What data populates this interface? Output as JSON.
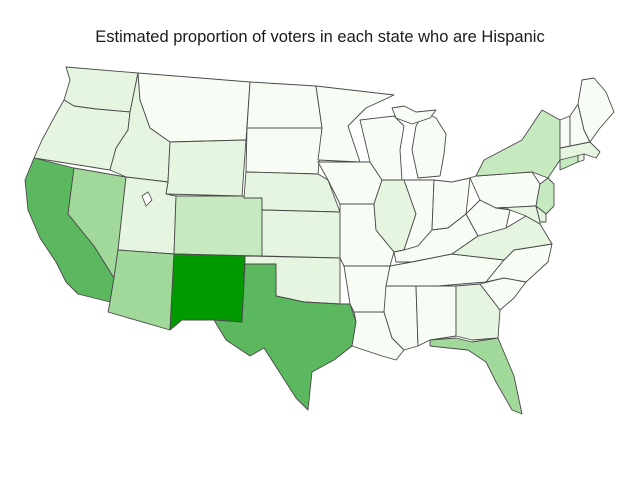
{
  "title": "Estimated proportion of voters in each state who are Hispanic",
  "palette": {
    "0": "#f7fcf5",
    "1": "#e5f5e0",
    "2": "#c7e9c0",
    "3": "#a1d99b",
    "4": "#5bb85e",
    "5": "#009a00"
  },
  "states": [
    {
      "name": "washington",
      "level": 1
    },
    {
      "name": "oregon",
      "level": 1
    },
    {
      "name": "california",
      "level": 4
    },
    {
      "name": "nevada",
      "level": 3
    },
    {
      "name": "idaho",
      "level": 1
    },
    {
      "name": "montana",
      "level": 0
    },
    {
      "name": "wyoming",
      "level": 1
    },
    {
      "name": "utah",
      "level": 1
    },
    {
      "name": "arizona",
      "level": 3
    },
    {
      "name": "colorado",
      "level": 2
    },
    {
      "name": "new-mexico",
      "level": 5
    },
    {
      "name": "north-dakota",
      "level": 0
    },
    {
      "name": "south-dakota",
      "level": 0
    },
    {
      "name": "nebraska",
      "level": 1
    },
    {
      "name": "kansas",
      "level": 1
    },
    {
      "name": "oklahoma",
      "level": 1
    },
    {
      "name": "texas",
      "level": 4
    },
    {
      "name": "minnesota",
      "level": 0
    },
    {
      "name": "iowa",
      "level": 0
    },
    {
      "name": "missouri",
      "level": 0
    },
    {
      "name": "arkansas",
      "level": 0
    },
    {
      "name": "louisiana",
      "level": 0
    },
    {
      "name": "wisconsin",
      "level": 0
    },
    {
      "name": "illinois",
      "level": 1
    },
    {
      "name": "michigan",
      "level": 0
    },
    {
      "name": "indiana",
      "level": 0
    },
    {
      "name": "ohio",
      "level": 0
    },
    {
      "name": "kentucky",
      "level": 0
    },
    {
      "name": "tennessee",
      "level": 0
    },
    {
      "name": "mississippi",
      "level": 0
    },
    {
      "name": "alabama",
      "level": 0
    },
    {
      "name": "georgia",
      "level": 1
    },
    {
      "name": "florida",
      "level": 3
    },
    {
      "name": "south-carolina",
      "level": 0
    },
    {
      "name": "north-carolina",
      "level": 0
    },
    {
      "name": "virginia",
      "level": 1
    },
    {
      "name": "west-virginia",
      "level": 0
    },
    {
      "name": "pennsylvania",
      "level": 0
    },
    {
      "name": "new-york",
      "level": 2
    },
    {
      "name": "new-jersey",
      "level": 2
    },
    {
      "name": "delaware",
      "level": 1
    },
    {
      "name": "maryland",
      "level": 1
    },
    {
      "name": "connecticut",
      "level": 2
    },
    {
      "name": "rhode-island",
      "level": 1
    },
    {
      "name": "massachusetts",
      "level": 1
    },
    {
      "name": "vermont",
      "level": 0
    },
    {
      "name": "new-hampshire",
      "level": 0
    },
    {
      "name": "maine",
      "level": 0
    }
  ]
}
